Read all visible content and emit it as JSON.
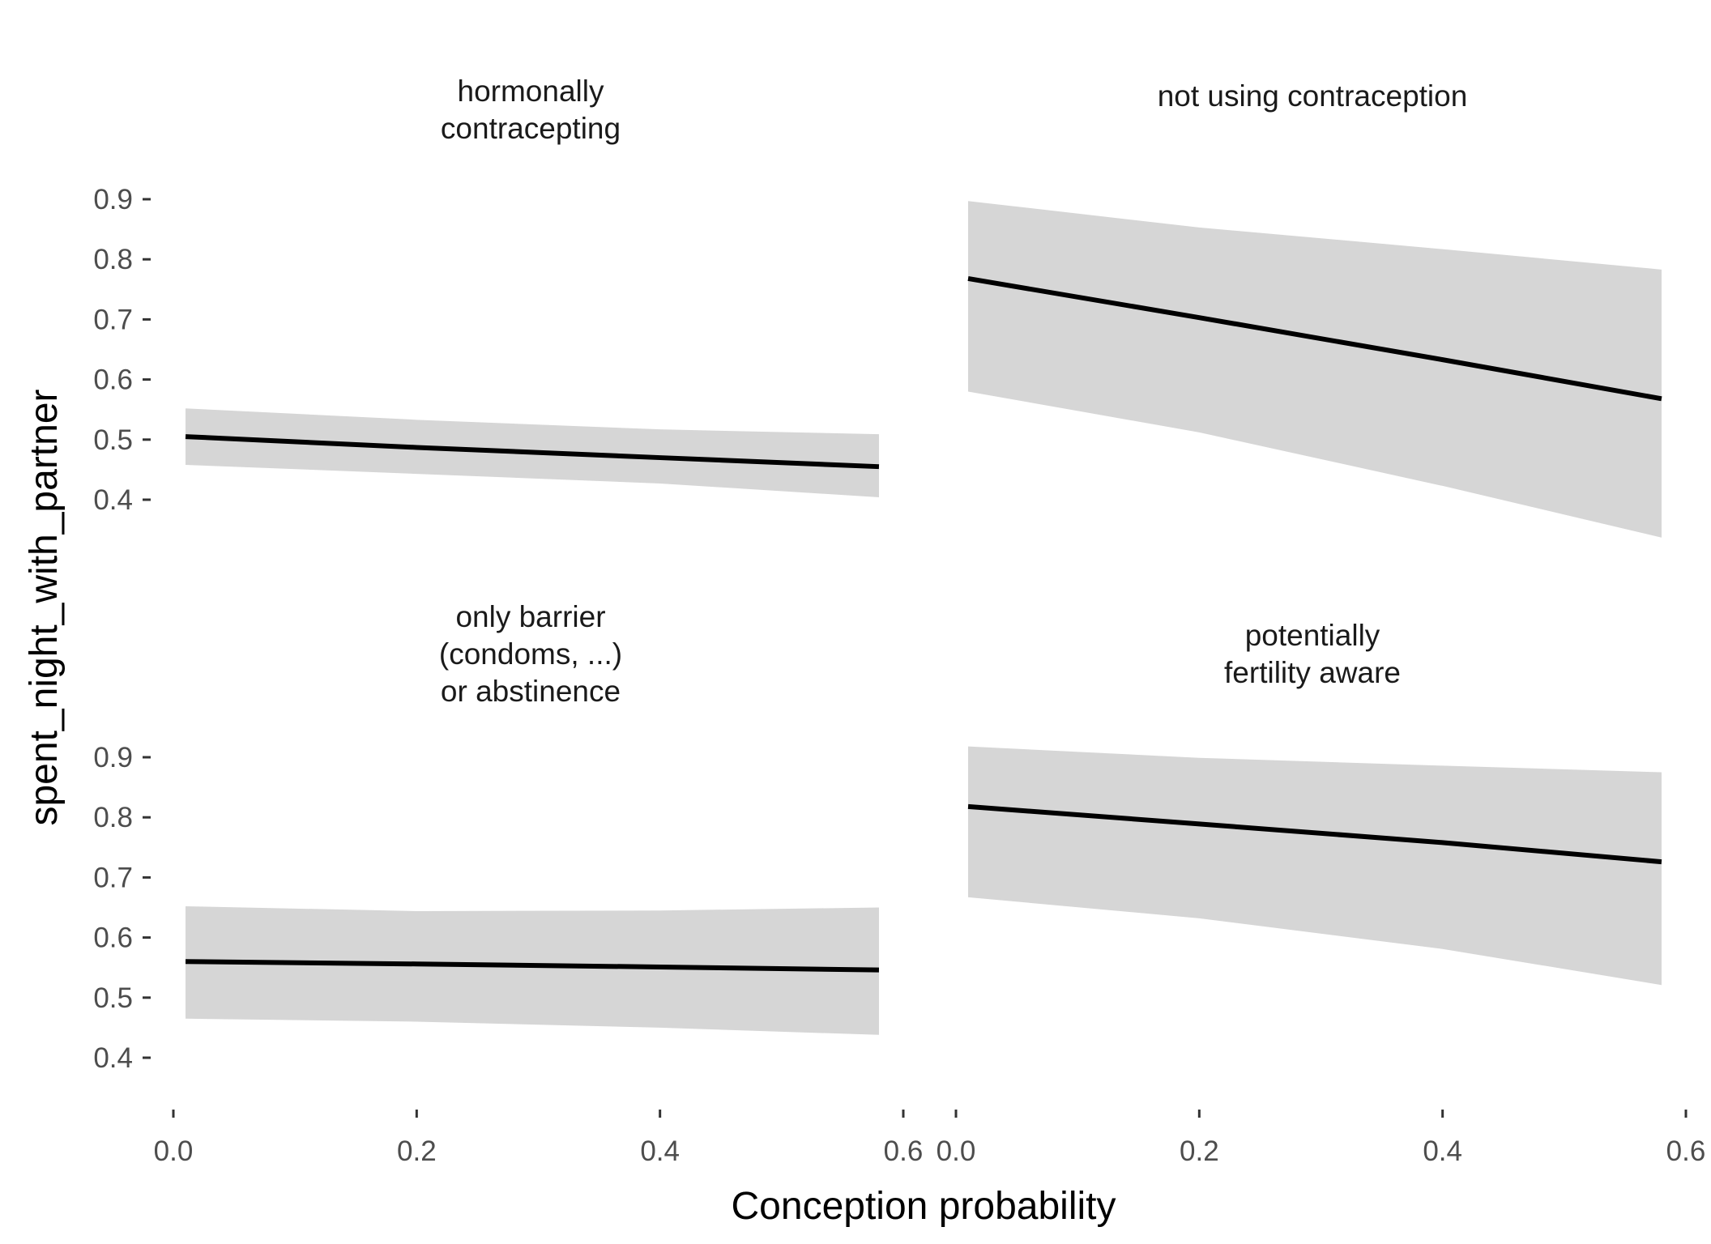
{
  "chart_data": {
    "type": "line",
    "xlabel": "Conception probability",
    "ylabel": "spent_night_with_partner",
    "xlim": [
      0,
      0.6
    ],
    "ylim": [
      0.3,
      1.0
    ],
    "x_ticks": [
      0.0,
      0.2,
      0.4,
      0.6
    ],
    "x_tick_labels": [
      "0.0",
      "0.2",
      "0.4",
      "0.6"
    ],
    "y_ticks": [
      0.4,
      0.5,
      0.6,
      0.7,
      0.8,
      0.9
    ],
    "y_tick_labels": [
      "0.4",
      "0.5",
      "0.6",
      "0.7",
      "0.8",
      "0.9"
    ],
    "grid": false,
    "band_color": "#d6d6d6",
    "line_color": "#000000",
    "panels": [
      {
        "title_lines": [
          "hormonally",
          "contracepting"
        ],
        "x": [
          0.01,
          0.2,
          0.4,
          0.58
        ],
        "fit": [
          0.505,
          0.487,
          0.47,
          0.455
        ],
        "lower": [
          0.458,
          0.443,
          0.427,
          0.404
        ],
        "upper": [
          0.552,
          0.533,
          0.517,
          0.509
        ]
      },
      {
        "title_lines": [
          "not using contraception"
        ],
        "x": [
          0.01,
          0.2,
          0.4,
          0.58
        ],
        "fit": [
          0.768,
          0.703,
          0.633,
          0.568
        ],
        "lower": [
          0.58,
          0.512,
          0.423,
          0.337
        ],
        "upper": [
          0.897,
          0.853,
          0.817,
          0.783
        ]
      },
      {
        "title_lines": [
          "only barrier",
          "(condoms, ...)",
          "or abstinence"
        ],
        "x": [
          0.01,
          0.2,
          0.4,
          0.58
        ],
        "fit": [
          0.56,
          0.556,
          0.551,
          0.546
        ],
        "lower": [
          0.465,
          0.46,
          0.45,
          0.438
        ],
        "upper": [
          0.652,
          0.644,
          0.645,
          0.65
        ]
      },
      {
        "title_lines": [
          "potentially",
          "fertility aware"
        ],
        "x": [
          0.01,
          0.2,
          0.4,
          0.58
        ],
        "fit": [
          0.818,
          0.789,
          0.758,
          0.726
        ],
        "lower": [
          0.667,
          0.632,
          0.581,
          0.521
        ],
        "upper": [
          0.918,
          0.899,
          0.886,
          0.875
        ]
      }
    ]
  }
}
